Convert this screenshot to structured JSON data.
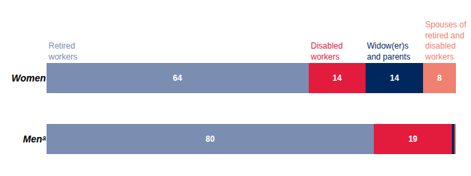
{
  "chart_data": {
    "type": "bar",
    "orientation": "horizontal",
    "stacked": true,
    "data_labels": true,
    "tick_labels": "y",
    "grid": false,
    "categories": [
      "Women",
      "Menᵃ"
    ],
    "xlim": [
      0,
      100
    ],
    "series": [
      {
        "name": "Retired workers",
        "color": "#7b8db0",
        "values": [
          64,
          80
        ],
        "value_labels": [
          "64",
          "80"
        ]
      },
      {
        "name": "Disabled workers",
        "color": "#e31b3c",
        "values": [
          14,
          19
        ],
        "value_labels": [
          "14",
          "19"
        ]
      },
      {
        "name": "Widow(er)s and parents",
        "color": "#00285e",
        "values": [
          14,
          0.6
        ],
        "value_labels": [
          "14",
          null
        ]
      },
      {
        "name": "Spouses of retired and disabled workers",
        "color": "#f08070",
        "values": [
          8,
          0.4
        ],
        "value_labels": [
          "8",
          null
        ]
      }
    ]
  }
}
